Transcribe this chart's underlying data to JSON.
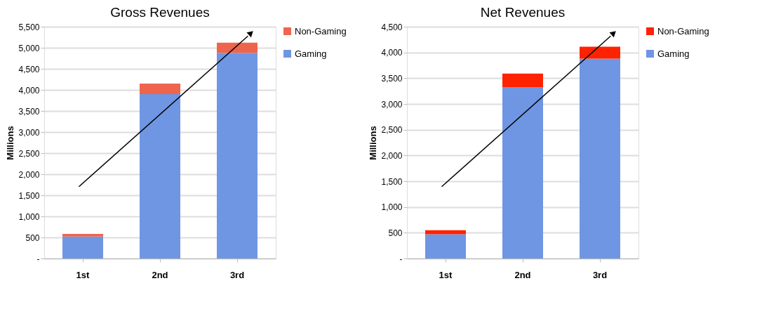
{
  "chart_data": [
    {
      "type": "bar",
      "title": "Gross Revenues",
      "ylabel": "Millions",
      "categories": [
        "1st",
        "2nd",
        "3rd"
      ],
      "stacked": true,
      "series": [
        {
          "name": "Gaming",
          "color": "#6f96e3",
          "values": [
            520,
            3900,
            4880
          ]
        },
        {
          "name": "Non-Gaming",
          "color": "#ef644c",
          "values": [
            65,
            250,
            240
          ]
        }
      ],
      "ylim": [
        0,
        5500
      ],
      "yticks": [
        {
          "value": 0,
          "label": "-"
        },
        {
          "value": 500,
          "label": "500"
        },
        {
          "value": 1000,
          "label": "1,000"
        },
        {
          "value": 1500,
          "label": "1,500"
        },
        {
          "value": 2000,
          "label": "2,000"
        },
        {
          "value": 2500,
          "label": "2,500"
        },
        {
          "value": 3000,
          "label": "3,000"
        },
        {
          "value": 3500,
          "label": "3,500"
        },
        {
          "value": 4000,
          "label": "4,000"
        },
        {
          "value": 4500,
          "label": "4,500"
        },
        {
          "value": 5000,
          "label": "5,000"
        },
        {
          "value": 5500,
          "label": "5,500"
        }
      ],
      "grid": "y",
      "legend": "right"
    },
    {
      "type": "bar",
      "title": "Net Revenues",
      "ylabel": "Millions",
      "categories": [
        "1st",
        "2nd",
        "3rd"
      ],
      "stacked": true,
      "series": [
        {
          "name": "Gaming",
          "color": "#6f96e3",
          "values": [
            470,
            3320,
            3880
          ]
        },
        {
          "name": "Non-Gaming",
          "color": "#ff2200",
          "values": [
            80,
            270,
            230
          ]
        }
      ],
      "ylim": [
        0,
        4500
      ],
      "yticks": [
        {
          "value": 0,
          "label": "-"
        },
        {
          "value": 500,
          "label": "500"
        },
        {
          "value": 1000,
          "label": "1,000"
        },
        {
          "value": 1500,
          "label": "1,500"
        },
        {
          "value": 2000,
          "label": "2,000"
        },
        {
          "value": 2500,
          "label": "2,500"
        },
        {
          "value": 3000,
          "label": "3,000"
        },
        {
          "value": 3500,
          "label": "3,500"
        },
        {
          "value": 4000,
          "label": "4,000"
        },
        {
          "value": 4500,
          "label": "4,500"
        }
      ],
      "grid": "y",
      "legend": "right"
    }
  ]
}
